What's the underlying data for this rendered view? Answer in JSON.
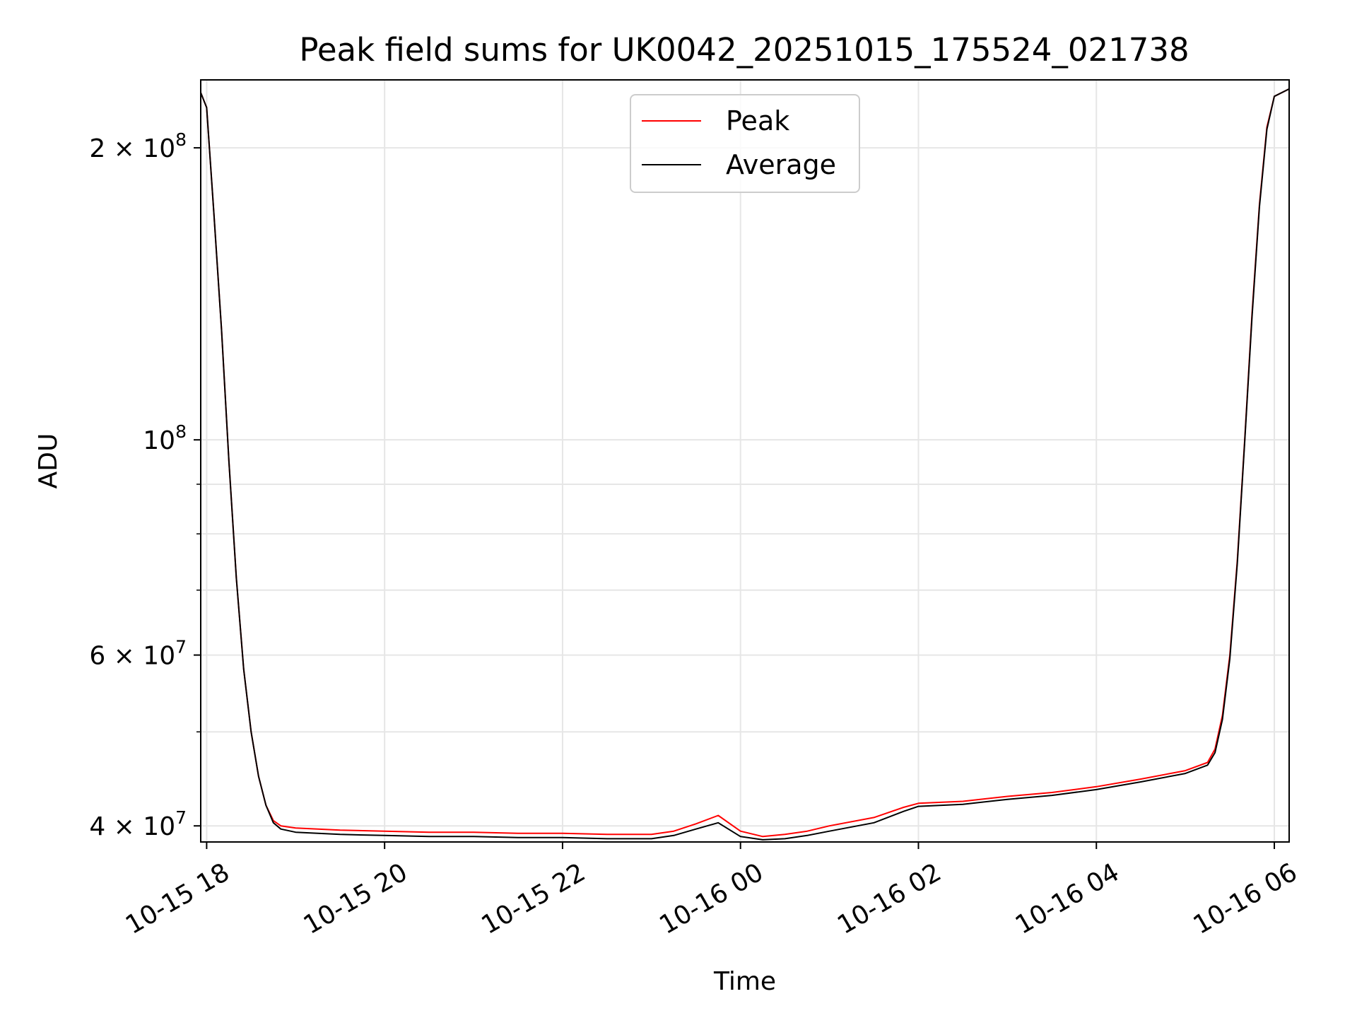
{
  "chart_data": {
    "type": "line",
    "title": "Peak field sums for UK0042_20251015_175524_021738",
    "xlabel": "Time",
    "ylabel": "ADU",
    "y_scale": "log",
    "ylim": [
      38500000,
      235000000
    ],
    "xlim": [
      "2025-10-15 17:56",
      "2025-10-16 06:10"
    ],
    "grid": true,
    "legend": {
      "placement": "top-center",
      "entries": [
        "Peak",
        "Average"
      ]
    },
    "x_ticks": [
      {
        "value": "2025-10-15 18:00",
        "label": "10-15 18"
      },
      {
        "value": "2025-10-15 20:00",
        "label": "10-15 20"
      },
      {
        "value": "2025-10-15 22:00",
        "label": "10-15 22"
      },
      {
        "value": "2025-10-16 00:00",
        "label": "10-16 00"
      },
      {
        "value": "2025-10-16 02:00",
        "label": "10-16 02"
      },
      {
        "value": "2025-10-16 04:00",
        "label": "10-16 04"
      },
      {
        "value": "2025-10-16 06:00",
        "label": "10-16 06"
      }
    ],
    "y_ticks": [
      {
        "value": 40000000,
        "label": "4 × 10",
        "exp": "7"
      },
      {
        "value": 60000000,
        "label": "6 × 10",
        "exp": "7"
      },
      {
        "value": 100000000,
        "label": "10",
        "exp": "8"
      },
      {
        "value": 200000000,
        "label": "2 × 10",
        "exp": "8"
      }
    ],
    "y_minor_ticks": [
      50000000,
      70000000,
      80000000,
      90000000
    ],
    "series": [
      {
        "name": "Peak",
        "color": "#ff0000",
        "x": [
          "2025-10-15 17:56",
          "2025-10-15 18:00",
          "2025-10-15 18:05",
          "2025-10-15 18:10",
          "2025-10-15 18:15",
          "2025-10-15 18:20",
          "2025-10-15 18:25",
          "2025-10-15 18:30",
          "2025-10-15 18:35",
          "2025-10-15 18:40",
          "2025-10-15 18:45",
          "2025-10-15 18:50",
          "2025-10-15 19:00",
          "2025-10-15 19:15",
          "2025-10-15 19:30",
          "2025-10-15 20:00",
          "2025-10-15 20:30",
          "2025-10-15 21:00",
          "2025-10-15 21:30",
          "2025-10-15 22:00",
          "2025-10-15 22:30",
          "2025-10-15 23:00",
          "2025-10-15 23:15",
          "2025-10-15 23:30",
          "2025-10-15 23:45",
          "2025-10-16 00:00",
          "2025-10-16 00:15",
          "2025-10-16 00:30",
          "2025-10-16 00:45",
          "2025-10-16 01:00",
          "2025-10-16 01:30",
          "2025-10-16 01:50",
          "2025-10-16 02:00",
          "2025-10-16 02:30",
          "2025-10-16 03:00",
          "2025-10-16 03:30",
          "2025-10-16 04:00",
          "2025-10-16 04:30",
          "2025-10-16 05:00",
          "2025-10-16 05:15",
          "2025-10-16 05:20",
          "2025-10-16 05:25",
          "2025-10-16 05:30",
          "2025-10-16 05:35",
          "2025-10-16 05:40",
          "2025-10-16 05:45",
          "2025-10-16 05:50",
          "2025-10-16 05:55",
          "2025-10-16 06:00",
          "2025-10-16 06:10"
        ],
        "y": [
          228000000,
          220000000,
          170000000,
          130000000,
          95000000,
          72000000,
          58000000,
          50000000,
          45000000,
          42000000,
          40500000,
          40000000,
          39800000,
          39700000,
          39600000,
          39500000,
          39400000,
          39400000,
          39300000,
          39300000,
          39200000,
          39200000,
          39500000,
          40200000,
          41000000,
          39500000,
          39000000,
          39200000,
          39500000,
          40000000,
          40800000,
          41800000,
          42200000,
          42400000,
          42900000,
          43300000,
          43900000,
          44700000,
          45600000,
          46500000,
          48000000,
          52000000,
          60000000,
          75000000,
          100000000,
          135000000,
          175000000,
          210000000,
          226000000,
          230000000
        ]
      },
      {
        "name": "Average",
        "color": "#000000",
        "x": [
          "2025-10-15 17:56",
          "2025-10-15 18:00",
          "2025-10-15 18:05",
          "2025-10-15 18:10",
          "2025-10-15 18:15",
          "2025-10-15 18:20",
          "2025-10-15 18:25",
          "2025-10-15 18:30",
          "2025-10-15 18:35",
          "2025-10-15 18:40",
          "2025-10-15 18:45",
          "2025-10-15 18:50",
          "2025-10-15 19:00",
          "2025-10-15 19:15",
          "2025-10-15 19:30",
          "2025-10-15 20:00",
          "2025-10-15 20:30",
          "2025-10-15 21:00",
          "2025-10-15 21:30",
          "2025-10-15 22:00",
          "2025-10-15 22:30",
          "2025-10-15 23:00",
          "2025-10-15 23:15",
          "2025-10-15 23:30",
          "2025-10-15 23:45",
          "2025-10-16 00:00",
          "2025-10-16 00:15",
          "2025-10-16 00:30",
          "2025-10-16 00:45",
          "2025-10-16 01:00",
          "2025-10-16 01:30",
          "2025-10-16 01:50",
          "2025-10-16 02:00",
          "2025-10-16 02:30",
          "2025-10-16 03:00",
          "2025-10-16 03:30",
          "2025-10-16 04:00",
          "2025-10-16 04:30",
          "2025-10-16 05:00",
          "2025-10-16 05:15",
          "2025-10-16 05:20",
          "2025-10-16 05:25",
          "2025-10-16 05:30",
          "2025-10-16 05:35",
          "2025-10-16 05:40",
          "2025-10-16 05:45",
          "2025-10-16 05:50",
          "2025-10-16 05:55",
          "2025-10-16 06:00",
          "2025-10-16 06:10"
        ],
        "y": [
          228000000,
          220000000,
          170000000,
          130000000,
          95000000,
          72000000,
          58000000,
          50000000,
          45000000,
          42000000,
          40300000,
          39700000,
          39400000,
          39300000,
          39200000,
          39100000,
          39000000,
          39000000,
          38900000,
          38900000,
          38800000,
          38800000,
          39100000,
          39700000,
          40300000,
          39000000,
          38700000,
          38800000,
          39100000,
          39500000,
          40300000,
          41400000,
          41900000,
          42100000,
          42600000,
          43000000,
          43600000,
          44400000,
          45300000,
          46200000,
          47600000,
          51500000,
          59500000,
          74500000,
          99500000,
          134000000,
          174000000,
          209000000,
          226000000,
          230000000
        ]
      }
    ]
  }
}
